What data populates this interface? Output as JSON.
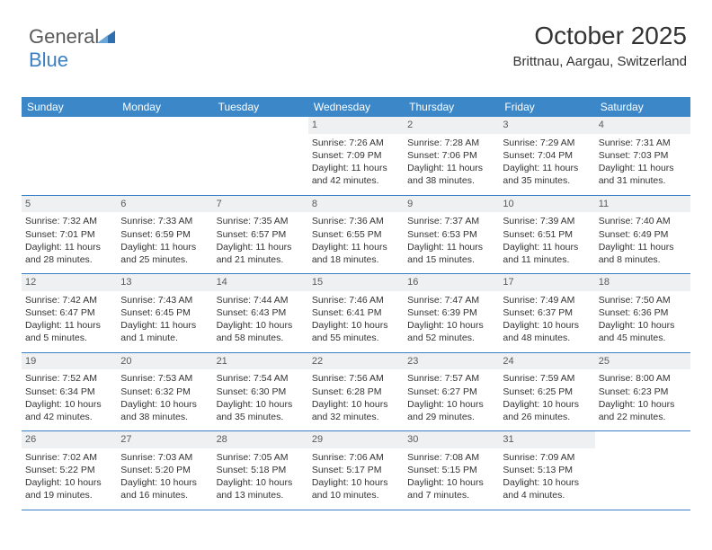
{
  "logo": {
    "text_general": "General",
    "text_blue": "Blue",
    "triangle_color": "#2f6fb0"
  },
  "header": {
    "month_title": "October 2025",
    "location": "Brittnau, Aargau, Switzerland"
  },
  "colors": {
    "header_bar_bg": "#3b87c8",
    "header_bar_text": "#ffffff",
    "daynum_bg": "#eef0f1",
    "week_border": "#3b7fc4",
    "body_text": "#333333",
    "page_bg": "#ffffff"
  },
  "weekdays": [
    "Sunday",
    "Monday",
    "Tuesday",
    "Wednesday",
    "Thursday",
    "Friday",
    "Saturday"
  ],
  "weeks": [
    [
      null,
      null,
      null,
      {
        "day": "1",
        "sunrise": "Sunrise: 7:26 AM",
        "sunset": "Sunset: 7:09 PM",
        "daylight": "Daylight: 11 hours and 42 minutes."
      },
      {
        "day": "2",
        "sunrise": "Sunrise: 7:28 AM",
        "sunset": "Sunset: 7:06 PM",
        "daylight": "Daylight: 11 hours and 38 minutes."
      },
      {
        "day": "3",
        "sunrise": "Sunrise: 7:29 AM",
        "sunset": "Sunset: 7:04 PM",
        "daylight": "Daylight: 11 hours and 35 minutes."
      },
      {
        "day": "4",
        "sunrise": "Sunrise: 7:31 AM",
        "sunset": "Sunset: 7:03 PM",
        "daylight": "Daylight: 11 hours and 31 minutes."
      }
    ],
    [
      {
        "day": "5",
        "sunrise": "Sunrise: 7:32 AM",
        "sunset": "Sunset: 7:01 PM",
        "daylight": "Daylight: 11 hours and 28 minutes."
      },
      {
        "day": "6",
        "sunrise": "Sunrise: 7:33 AM",
        "sunset": "Sunset: 6:59 PM",
        "daylight": "Daylight: 11 hours and 25 minutes."
      },
      {
        "day": "7",
        "sunrise": "Sunrise: 7:35 AM",
        "sunset": "Sunset: 6:57 PM",
        "daylight": "Daylight: 11 hours and 21 minutes."
      },
      {
        "day": "8",
        "sunrise": "Sunrise: 7:36 AM",
        "sunset": "Sunset: 6:55 PM",
        "daylight": "Daylight: 11 hours and 18 minutes."
      },
      {
        "day": "9",
        "sunrise": "Sunrise: 7:37 AM",
        "sunset": "Sunset: 6:53 PM",
        "daylight": "Daylight: 11 hours and 15 minutes."
      },
      {
        "day": "10",
        "sunrise": "Sunrise: 7:39 AM",
        "sunset": "Sunset: 6:51 PM",
        "daylight": "Daylight: 11 hours and 11 minutes."
      },
      {
        "day": "11",
        "sunrise": "Sunrise: 7:40 AM",
        "sunset": "Sunset: 6:49 PM",
        "daylight": "Daylight: 11 hours and 8 minutes."
      }
    ],
    [
      {
        "day": "12",
        "sunrise": "Sunrise: 7:42 AM",
        "sunset": "Sunset: 6:47 PM",
        "daylight": "Daylight: 11 hours and 5 minutes."
      },
      {
        "day": "13",
        "sunrise": "Sunrise: 7:43 AM",
        "sunset": "Sunset: 6:45 PM",
        "daylight": "Daylight: 11 hours and 1 minute."
      },
      {
        "day": "14",
        "sunrise": "Sunrise: 7:44 AM",
        "sunset": "Sunset: 6:43 PM",
        "daylight": "Daylight: 10 hours and 58 minutes."
      },
      {
        "day": "15",
        "sunrise": "Sunrise: 7:46 AM",
        "sunset": "Sunset: 6:41 PM",
        "daylight": "Daylight: 10 hours and 55 minutes."
      },
      {
        "day": "16",
        "sunrise": "Sunrise: 7:47 AM",
        "sunset": "Sunset: 6:39 PM",
        "daylight": "Daylight: 10 hours and 52 minutes."
      },
      {
        "day": "17",
        "sunrise": "Sunrise: 7:49 AM",
        "sunset": "Sunset: 6:37 PM",
        "daylight": "Daylight: 10 hours and 48 minutes."
      },
      {
        "day": "18",
        "sunrise": "Sunrise: 7:50 AM",
        "sunset": "Sunset: 6:36 PM",
        "daylight": "Daylight: 10 hours and 45 minutes."
      }
    ],
    [
      {
        "day": "19",
        "sunrise": "Sunrise: 7:52 AM",
        "sunset": "Sunset: 6:34 PM",
        "daylight": "Daylight: 10 hours and 42 minutes."
      },
      {
        "day": "20",
        "sunrise": "Sunrise: 7:53 AM",
        "sunset": "Sunset: 6:32 PM",
        "daylight": "Daylight: 10 hours and 38 minutes."
      },
      {
        "day": "21",
        "sunrise": "Sunrise: 7:54 AM",
        "sunset": "Sunset: 6:30 PM",
        "daylight": "Daylight: 10 hours and 35 minutes."
      },
      {
        "day": "22",
        "sunrise": "Sunrise: 7:56 AM",
        "sunset": "Sunset: 6:28 PM",
        "daylight": "Daylight: 10 hours and 32 minutes."
      },
      {
        "day": "23",
        "sunrise": "Sunrise: 7:57 AM",
        "sunset": "Sunset: 6:27 PM",
        "daylight": "Daylight: 10 hours and 29 minutes."
      },
      {
        "day": "24",
        "sunrise": "Sunrise: 7:59 AM",
        "sunset": "Sunset: 6:25 PM",
        "daylight": "Daylight: 10 hours and 26 minutes."
      },
      {
        "day": "25",
        "sunrise": "Sunrise: 8:00 AM",
        "sunset": "Sunset: 6:23 PM",
        "daylight": "Daylight: 10 hours and 22 minutes."
      }
    ],
    [
      {
        "day": "26",
        "sunrise": "Sunrise: 7:02 AM",
        "sunset": "Sunset: 5:22 PM",
        "daylight": "Daylight: 10 hours and 19 minutes."
      },
      {
        "day": "27",
        "sunrise": "Sunrise: 7:03 AM",
        "sunset": "Sunset: 5:20 PM",
        "daylight": "Daylight: 10 hours and 16 minutes."
      },
      {
        "day": "28",
        "sunrise": "Sunrise: 7:05 AM",
        "sunset": "Sunset: 5:18 PM",
        "daylight": "Daylight: 10 hours and 13 minutes."
      },
      {
        "day": "29",
        "sunrise": "Sunrise: 7:06 AM",
        "sunset": "Sunset: 5:17 PM",
        "daylight": "Daylight: 10 hours and 10 minutes."
      },
      {
        "day": "30",
        "sunrise": "Sunrise: 7:08 AM",
        "sunset": "Sunset: 5:15 PM",
        "daylight": "Daylight: 10 hours and 7 minutes."
      },
      {
        "day": "31",
        "sunrise": "Sunrise: 7:09 AM",
        "sunset": "Sunset: 5:13 PM",
        "daylight": "Daylight: 10 hours and 4 minutes."
      },
      null
    ]
  ]
}
